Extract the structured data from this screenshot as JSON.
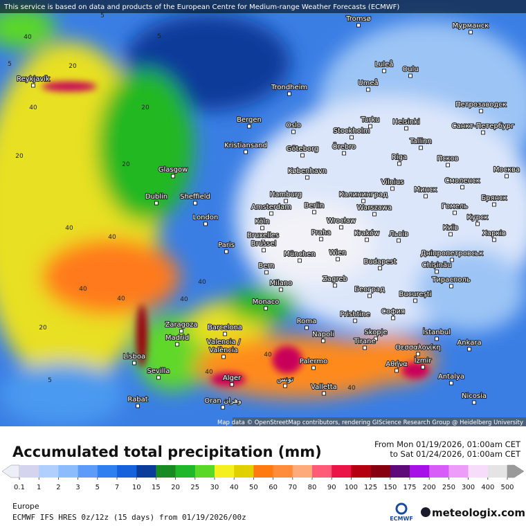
{
  "banner": "This service is based on data and products of the European Centre for Medium-range Weather Forecasts (ECMWF)",
  "attribution": "Map data © OpenStreetMap contributors, rendering GIScience Research Group @ Heidelberg University",
  "cities": [
    "Tromsø",
    "Мурманск",
    "Reykjavík",
    "Luleå",
    "Oulu",
    "Trondheim",
    "Umeå",
    "Петрозаводск",
    "Bergen",
    "Turku",
    "Helsinki",
    "Oslo",
    "Санкт-Петербург",
    "Stockholm",
    "Kristiansand",
    "Göteborg",
    "Örebro",
    "Tallinn",
    "Riga",
    "Псков",
    "København",
    "Москва",
    "Glasgow",
    "Vilnius",
    "Смоленск",
    "Hamburg",
    "Калининград",
    "Минск",
    "Брянск",
    "Dublin",
    "Sheffield",
    "Amsterdam",
    "Berlin",
    "Warszawa",
    "Гомель",
    "London",
    "Köln",
    "Wrocław",
    "Курск",
    "Київ",
    "Bruxelles",
    "Brussel",
    "Praha",
    "Kraków",
    "Львів",
    "Харків",
    "Paris",
    "München",
    "Wien",
    "Дніпропетровськ",
    "Chișinău",
    "Bern",
    "Budapest",
    "Тирасполь",
    "Milano",
    "Zagreb",
    "Београд",
    "București",
    "Monaco",
    "Prishtine",
    "София",
    "Zaragoza",
    "Roma",
    "Barcelona",
    "İstanbul",
    "Madrid",
    "Napoli",
    "Skopje",
    "Tirane",
    "Θεσσαλονίκη",
    "Ankara",
    "Valencia /",
    "València",
    "Lisboa",
    "Palermo",
    "Αθήνα",
    "İzmir",
    "Sevilla",
    "Valletta",
    "Antalya",
    "Alger",
    "تونس",
    "Nicosia",
    "Rabat",
    "Oran وهران"
  ],
  "contour_labels": [
    40,
    20,
    20,
    40,
    40,
    40,
    40,
    20,
    5,
    40,
    40,
    40,
    40,
    40,
    5,
    5,
    5,
    20,
    20,
    40
  ],
  "title": "Accumulated total precipitation (mm)",
  "period": {
    "from": "From Mon 01/19/2026, 01:00am CET",
    "to": "to Sat 01/24/2026, 01:00am CET"
  },
  "legend": {
    "ticks": [
      0.1,
      1,
      2,
      3,
      5,
      7,
      10,
      15,
      20,
      25,
      30,
      40,
      50,
      60,
      70,
      80,
      90,
      100,
      125,
      150,
      175,
      200,
      250,
      300,
      400,
      500
    ],
    "colors": [
      "#d4d4ee",
      "#b0cffc",
      "#8cbcfc",
      "#5c9cf8",
      "#2f7ff0",
      "#1562dc",
      "#0b3c9c",
      "#1a8a22",
      "#20b82a",
      "#5ad828",
      "#f4f020",
      "#e0d000",
      "#ff7a10",
      "#ff8c3a",
      "#ffaa7a",
      "#ff5a78",
      "#ea1446",
      "#b40010",
      "#860010",
      "#5e0a7a",
      "#a810e8",
      "#d85cf8",
      "#ee9cfa",
      "#f6ddfa",
      "#e4e4e4"
    ],
    "below_color": "#eeeef8",
    "above_color": "#9a9a9a"
  },
  "region": "Europe",
  "model": "ECMWF IFS HRES 0z/12z (15 days) from  01/19/2026/00z",
  "ecmwf_logo": "ECMWF",
  "brand": "meteologix.com"
}
